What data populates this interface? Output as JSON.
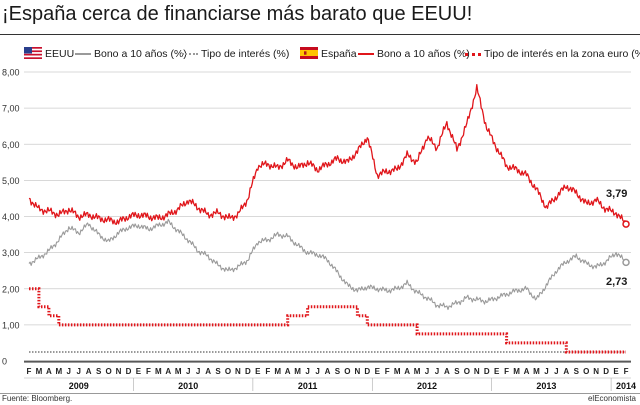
{
  "title": "¡España cerca de financiarse más barato que EEUU!",
  "legend": {
    "us_flag_icon": "us-flag-icon",
    "us_country": "EEUU",
    "us_bond": "Bono a 10 años (%)",
    "us_rate": "Tipo de interés (%)",
    "es_flag_icon": "spain-flag-icon",
    "es_country": "España",
    "es_bond": "Bono a 10 años (%)",
    "es_rate": "Tipo de interés en la zona euro (%)"
  },
  "annotations": {
    "es_last": "3,79",
    "us_last": "2,73"
  },
  "source": "Fuente: Bloomberg.",
  "brand": "elEconomista",
  "colors": {
    "spain": "#e0161b",
    "us": "#9a9a9a",
    "us_rate": "#9a9a9a",
    "euro_rate": "#e0161b",
    "grid": "#cccccc"
  },
  "chart_data": {
    "type": "line",
    "title": "¡España cerca de financiarse más barato que EEUU!",
    "ylim": [
      0,
      8
    ],
    "yticks": [
      "0",
      "1,00",
      "2,00",
      "3,00",
      "4,00",
      "5,00",
      "6,00",
      "7,00",
      "8,00"
    ],
    "x_months": [
      "F",
      "M",
      "A",
      "M",
      "J",
      "J",
      "A",
      "S",
      "O",
      "N",
      "D",
      "E",
      "F",
      "M",
      "A",
      "M",
      "J",
      "J",
      "A",
      "S",
      "O",
      "N",
      "D",
      "E",
      "F",
      "M",
      "A",
      "M",
      "J",
      "J",
      "A",
      "S",
      "O",
      "N",
      "D",
      "E",
      "F",
      "M",
      "A",
      "M",
      "J",
      "J",
      "A",
      "S",
      "O",
      "N",
      "D",
      "E",
      "F",
      "M",
      "A",
      "M",
      "J",
      "J",
      "A",
      "S",
      "O",
      "N",
      "D",
      "E",
      "F"
    ],
    "x_years": [
      {
        "label": "2009",
        "month_index": 5
      },
      {
        "label": "2010",
        "month_index": 16
      },
      {
        "label": "2011",
        "month_index": 28
      },
      {
        "label": "2012",
        "month_index": 40
      },
      {
        "label": "2013",
        "month_index": 52
      },
      {
        "label": "2014",
        "month_index": 60
      }
    ],
    "grid": "horizontal",
    "legend_position": "top",
    "series": [
      {
        "name": "España Bono a 10 años (%)",
        "style": "solid",
        "color": "#e0161b",
        "points": [
          [
            0,
            4.5
          ],
          [
            1,
            4.2
          ],
          [
            2,
            4.15
          ],
          [
            3,
            4.05
          ],
          [
            4,
            4.2
          ],
          [
            5,
            4.0
          ],
          [
            6,
            4.05
          ],
          [
            7,
            3.95
          ],
          [
            8,
            3.9
          ],
          [
            9,
            3.85
          ],
          [
            10,
            4.0
          ],
          [
            11,
            4.05
          ],
          [
            12,
            4.0
          ],
          [
            13,
            3.95
          ],
          [
            14,
            4.05
          ],
          [
            15,
            4.2
          ],
          [
            16,
            4.45
          ],
          [
            17,
            4.25
          ],
          [
            18,
            4.05
          ],
          [
            19,
            4.1
          ],
          [
            20,
            3.95
          ],
          [
            21,
            4.05
          ],
          [
            22,
            4.5
          ],
          [
            23,
            5.4
          ],
          [
            24,
            5.45
          ],
          [
            25,
            5.35
          ],
          [
            26,
            5.55
          ],
          [
            27,
            5.35
          ],
          [
            28,
            5.5
          ],
          [
            29,
            5.3
          ],
          [
            30,
            5.45
          ],
          [
            31,
            5.6
          ],
          [
            32,
            5.5
          ],
          [
            33,
            5.8
          ],
          [
            34,
            6.2
          ],
          [
            35,
            5.15
          ],
          [
            36,
            5.25
          ],
          [
            37,
            5.3
          ],
          [
            38,
            5.7
          ],
          [
            39,
            5.5
          ],
          [
            40,
            6.2
          ],
          [
            41,
            5.9
          ],
          [
            42,
            6.6
          ],
          [
            43,
            5.85
          ],
          [
            44,
            6.55
          ],
          [
            45,
            7.55
          ],
          [
            46,
            6.45
          ],
          [
            47,
            5.9
          ],
          [
            48,
            5.4
          ],
          [
            49,
            5.3
          ],
          [
            50,
            5.15
          ],
          [
            51,
            4.75
          ],
          [
            52,
            4.25
          ],
          [
            53,
            4.55
          ],
          [
            54,
            4.85
          ],
          [
            55,
            4.65
          ],
          [
            56,
            4.35
          ],
          [
            57,
            4.45
          ],
          [
            58,
            4.2
          ],
          [
            59,
            4.1
          ],
          [
            60,
            3.79
          ]
        ]
      },
      {
        "name": "EEUU Bono a 10 años (%)",
        "style": "solid",
        "color": "#9a9a9a",
        "points": [
          [
            0,
            2.7
          ],
          [
            1,
            2.85
          ],
          [
            2,
            3.05
          ],
          [
            3,
            3.35
          ],
          [
            4,
            3.7
          ],
          [
            5,
            3.55
          ],
          [
            6,
            3.8
          ],
          [
            7,
            3.5
          ],
          [
            8,
            3.3
          ],
          [
            9,
            3.55
          ],
          [
            10,
            3.7
          ],
          [
            11,
            3.75
          ],
          [
            12,
            3.65
          ],
          [
            13,
            3.75
          ],
          [
            14,
            3.85
          ],
          [
            15,
            3.6
          ],
          [
            16,
            3.35
          ],
          [
            17,
            3.05
          ],
          [
            18,
            2.9
          ],
          [
            19,
            2.65
          ],
          [
            20,
            2.5
          ],
          [
            21,
            2.6
          ],
          [
            22,
            2.8
          ],
          [
            23,
            3.3
          ],
          [
            24,
            3.35
          ],
          [
            25,
            3.5
          ],
          [
            26,
            3.45
          ],
          [
            27,
            3.2
          ],
          [
            28,
            3.0
          ],
          [
            29,
            2.95
          ],
          [
            30,
            2.8
          ],
          [
            31,
            2.45
          ],
          [
            32,
            2.1
          ],
          [
            33,
            1.95
          ],
          [
            34,
            2.05
          ],
          [
            35,
            2.0
          ],
          [
            36,
            1.95
          ],
          [
            37,
            2.0
          ],
          [
            38,
            2.15
          ],
          [
            39,
            1.9
          ],
          [
            40,
            1.75
          ],
          [
            41,
            1.55
          ],
          [
            42,
            1.5
          ],
          [
            43,
            1.6
          ],
          [
            44,
            1.75
          ],
          [
            45,
            1.7
          ],
          [
            46,
            1.65
          ],
          [
            47,
            1.75
          ],
          [
            48,
            1.85
          ],
          [
            49,
            1.95
          ],
          [
            50,
            2.0
          ],
          [
            51,
            1.7
          ],
          [
            52,
            2.1
          ],
          [
            53,
            2.5
          ],
          [
            54,
            2.75
          ],
          [
            55,
            2.9
          ],
          [
            56,
            2.7
          ],
          [
            57,
            2.6
          ],
          [
            58,
            2.75
          ],
          [
            59,
            3.0
          ],
          [
            60,
            2.73
          ]
        ]
      },
      {
        "name": "Tipo de interés (%)",
        "style": "dotted",
        "color": "#9a9a9a",
        "points": [
          [
            0,
            0.25
          ],
          [
            60,
            0.25
          ]
        ]
      },
      {
        "name": "Tipo de interés en la zona euro (%)",
        "style": "dotted",
        "color": "#e0161b",
        "points": [
          [
            0,
            2.0
          ],
          [
            1,
            2.0
          ],
          [
            1,
            1.5
          ],
          [
            2,
            1.5
          ],
          [
            2,
            1.25
          ],
          [
            3,
            1.25
          ],
          [
            3,
            1.0
          ],
          [
            26,
            1.0
          ],
          [
            26,
            1.25
          ],
          [
            28,
            1.25
          ],
          [
            28,
            1.5
          ],
          [
            33,
            1.5
          ],
          [
            33,
            1.25
          ],
          [
            34,
            1.25
          ],
          [
            34,
            1.0
          ],
          [
            39,
            1.0
          ],
          [
            39,
            0.75
          ],
          [
            48,
            0.75
          ],
          [
            48,
            0.5
          ],
          [
            54,
            0.5
          ],
          [
            54,
            0.25
          ],
          [
            60,
            0.25
          ]
        ]
      }
    ]
  }
}
